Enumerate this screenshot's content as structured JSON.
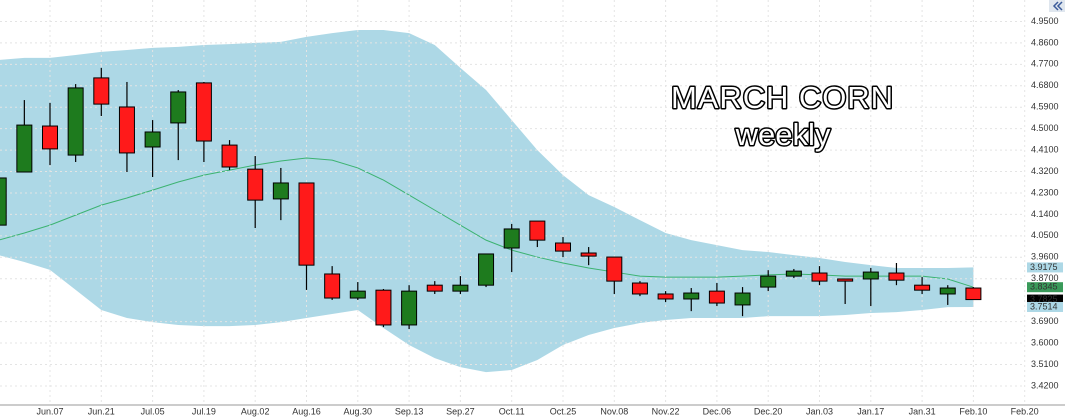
{
  "chart_data": {
    "type": "candlestick",
    "title": "MARCH CORN",
    "subtitle": "weekly",
    "categories": [
      null,
      null,
      "Jun.07",
      null,
      "Jun.21",
      null,
      "Jul.05",
      null,
      "Jul.19",
      null,
      "Aug.02",
      null,
      "Aug.16",
      null,
      "Aug.30",
      null,
      "Sep.13",
      null,
      "Sep.27",
      null,
      "Oct.11",
      null,
      "Oct.25",
      null,
      "Nov.08",
      null,
      "Nov.22",
      null,
      "Dec.06",
      null,
      "Dec.20",
      null,
      "Jan.03",
      null,
      "Jan.17",
      null,
      "Jan.31",
      null,
      "Feb.10",
      null,
      "Feb.20"
    ],
    "open": [
      4.095,
      4.318,
      4.511,
      4.389,
      4.713,
      4.591,
      4.423,
      4.524,
      4.692,
      4.431,
      4.33,
      4.205,
      4.272,
      3.89,
      3.789,
      3.822,
      3.676,
      3.843,
      3.818,
      3.843,
      3.999,
      4.112,
      4.02,
      3.978,
      3.961,
      3.852,
      3.806,
      3.785,
      3.818,
      3.76,
      3.835,
      3.881,
      3.894,
      3.869,
      3.869,
      3.894,
      3.843,
      3.806,
      3.831,
      null,
      null
    ],
    "high": [
      4.3,
      4.62,
      4.608,
      4.687,
      4.755,
      4.696,
      4.536,
      4.662,
      4.696,
      4.452,
      4.385,
      4.335,
      4.272,
      3.923,
      3.856,
      3.827,
      3.843,
      3.86,
      3.881,
      3.974,
      4.1,
      4.112,
      4.045,
      4.003,
      3.961,
      3.86,
      3.818,
      3.831,
      3.852,
      3.835,
      3.906,
      3.911,
      3.923,
      3.869,
      3.915,
      3.936,
      3.877,
      3.843,
      3.835,
      null,
      null
    ],
    "low": [
      4.09,
      4.318,
      4.347,
      4.36,
      4.553,
      4.318,
      4.297,
      4.368,
      4.36,
      4.326,
      4.083,
      4.116,
      3.823,
      3.781,
      3.781,
      3.667,
      3.659,
      3.806,
      3.806,
      3.835,
      3.898,
      4.003,
      3.961,
      3.927,
      3.806,
      3.797,
      3.772,
      3.734,
      3.755,
      3.713,
      3.818,
      3.873,
      3.843,
      3.764,
      3.755,
      3.843,
      3.806,
      3.76,
      3.781,
      null,
      null
    ],
    "close": [
      4.293,
      4.515,
      4.415,
      4.671,
      4.603,
      4.398,
      4.486,
      4.654,
      4.448,
      4.339,
      4.2,
      4.272,
      3.927,
      3.789,
      3.818,
      3.676,
      3.818,
      3.818,
      3.843,
      3.974,
      4.079,
      4.032,
      3.986,
      3.965,
      3.86,
      3.806,
      3.785,
      3.81,
      3.768,
      3.81,
      3.881,
      3.902,
      3.86,
      3.86,
      3.898,
      3.864,
      3.822,
      3.831,
      3.7825,
      null,
      null
    ],
    "up_color": "#1e7b1e",
    "down_color": "#ff1a1a",
    "bands": {
      "upper": [
        4.788,
        4.797,
        4.797,
        4.809,
        4.822,
        4.83,
        4.839,
        4.843,
        4.851,
        4.855,
        4.86,
        4.864,
        4.885,
        4.901,
        4.914,
        4.914,
        4.901,
        4.851,
        4.755,
        4.662,
        4.536,
        4.41,
        4.305,
        4.221,
        4.171,
        4.116,
        4.062,
        4.032,
        4.011,
        3.99,
        3.982,
        3.969,
        3.957,
        3.94,
        3.927,
        3.915,
        3.915,
        3.915,
        3.9175,
        null,
        null
      ],
      "middle": [
        4.032,
        4.062,
        4.095,
        4.137,
        4.179,
        4.209,
        4.242,
        4.276,
        4.305,
        4.326,
        4.347,
        4.364,
        4.377,
        4.368,
        4.335,
        4.284,
        4.221,
        4.158,
        4.095,
        4.032,
        3.99,
        3.961,
        3.936,
        3.915,
        3.898,
        3.881,
        3.877,
        3.877,
        3.877,
        3.881,
        3.886,
        3.89,
        3.886,
        3.881,
        3.881,
        3.881,
        3.881,
        3.869,
        3.8345,
        null,
        null
      ],
      "lower": [
        3.969,
        3.94,
        3.907,
        3.823,
        3.739,
        3.705,
        3.688,
        3.676,
        3.671,
        3.671,
        3.676,
        3.688,
        3.705,
        3.722,
        3.739,
        3.663,
        3.592,
        3.537,
        3.499,
        3.478,
        3.487,
        3.529,
        3.592,
        3.634,
        3.663,
        3.684,
        3.697,
        3.705,
        3.705,
        3.705,
        3.713,
        3.713,
        3.713,
        3.718,
        3.726,
        3.73,
        3.739,
        3.751,
        3.7514,
        null,
        null
      ],
      "fill_color": "#add8e6",
      "line_color": "#3cb371"
    },
    "ylim": [
      3.34,
      5.04
    ],
    "yticks": [
      {
        "value": 4.95,
        "label": "4.9500"
      },
      {
        "value": 4.86,
        "label": "4.8600"
      },
      {
        "value": 4.77,
        "label": "4.7700"
      },
      {
        "value": 4.68,
        "label": "4.6800"
      },
      {
        "value": 4.59,
        "label": "4.5900"
      },
      {
        "value": 4.5,
        "label": "4.5000"
      },
      {
        "value": 4.41,
        "label": "4.4100"
      },
      {
        "value": 4.32,
        "label": "4.3200"
      },
      {
        "value": 4.23,
        "label": "4.2300"
      },
      {
        "value": 4.14,
        "label": "4.1400"
      },
      {
        "value": 4.05,
        "label": "4.0500"
      },
      {
        "value": 3.96,
        "label": "3.9600"
      },
      {
        "value": 3.87,
        "label": "3.8700"
      },
      {
        "value": 3.69,
        "label": "3.6900"
      },
      {
        "value": 3.6,
        "label": "3.6000"
      },
      {
        "value": 3.51,
        "label": "3.5100"
      },
      {
        "value": 3.42,
        "label": "3.4200"
      }
    ],
    "grid": true,
    "last_labels": [
      {
        "value": 3.9175,
        "label": "3.9175",
        "color": "#add8e6"
      },
      {
        "value": 3.8345,
        "label": "3.8345",
        "color": "#3a9a5a"
      },
      {
        "value": 3.7825,
        "label": "3.7825",
        "color": "#000000"
      },
      {
        "value": 3.7514,
        "label": "3.7514",
        "color": "#add8e6"
      }
    ]
  }
}
